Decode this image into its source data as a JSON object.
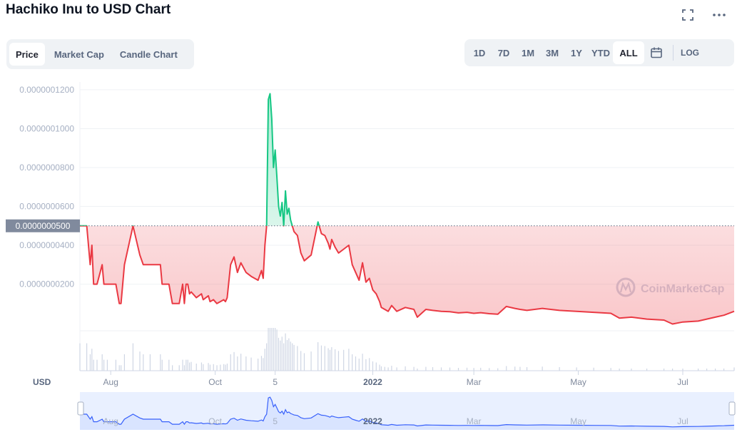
{
  "header": {
    "title": "Hachiko Inu to USD Chart"
  },
  "tabs": [
    {
      "label": "Price",
      "active": true
    },
    {
      "label": "Market Cap",
      "active": false
    },
    {
      "label": "Candle Chart",
      "active": false
    }
  ],
  "ranges": [
    {
      "label": "1D",
      "active": false
    },
    {
      "label": "7D",
      "active": false
    },
    {
      "label": "1M",
      "active": false
    },
    {
      "label": "3M",
      "active": false
    },
    {
      "label": "1Y",
      "active": false
    },
    {
      "label": "YTD",
      "active": false
    },
    {
      "label": "ALL",
      "active": true
    }
  ],
  "log_label": "LOG",
  "icons": {
    "fullscreen": "fullscreen-icon",
    "more": "more-icon",
    "calendar": "calendar-icon"
  },
  "colors": {
    "up": "#16c784",
    "down": "#ea3943",
    "navigator": "#3861fb"
  },
  "chart_data": {
    "type": "line",
    "currency_label": "USD",
    "watermark": "CoinMarketCap",
    "baseline_label": "0.0000000500",
    "baseline": 5e-08,
    "y_tick_labels": [
      "0.0000000200",
      "0.0000000400",
      "0.0000000600",
      "0.0000000800",
      "0.0000001000",
      "0.0000001200"
    ],
    "y_tick_values": [
      2e-08,
      4e-08,
      6e-08,
      8e-08,
      1e-07,
      1.2e-07
    ],
    "ylim": [
      -4e-09,
      1.24e-07
    ],
    "xlim": [
      "2021-07-14",
      "2022-07-31"
    ],
    "x_ticks": [
      {
        "date": "2021-08-01",
        "label": "Aug",
        "bold": false
      },
      {
        "date": "2021-10-01",
        "label": "Oct",
        "bold": false
      },
      {
        "date": "2021-11-05",
        "label": "5",
        "bold": false
      },
      {
        "date": "2022-01-01",
        "label": "2022",
        "bold": true
      },
      {
        "date": "2022-03-01",
        "label": "Mar",
        "bold": false
      },
      {
        "date": "2022-05-01",
        "label": "May",
        "bold": false
      },
      {
        "date": "2022-07-01",
        "label": "Jul",
        "bold": false
      }
    ],
    "series": [
      {
        "x": [
          "2021-07-14",
          "2021-07-18",
          "2021-07-20",
          "2021-07-21",
          "2021-07-22",
          "2021-07-24",
          "2021-07-27",
          "2021-07-28",
          "2021-07-30",
          "2021-08-04",
          "2021-08-06",
          "2021-08-07",
          "2021-08-09",
          "2021-08-14",
          "2021-08-18",
          "2021-08-20",
          "2021-08-24",
          "2021-08-30",
          "2021-08-31",
          "2021-09-04",
          "2021-09-06",
          "2021-09-10",
          "2021-09-12",
          "2021-09-13",
          "2021-09-14",
          "2021-09-15",
          "2021-09-16",
          "2021-09-17",
          "2021-09-20",
          "2021-09-23",
          "2021-09-24",
          "2021-09-27",
          "2021-09-28",
          "2021-09-30",
          "2021-10-02",
          "2021-10-04",
          "2021-10-06",
          "2021-10-07",
          "2021-10-08",
          "2021-10-10",
          "2021-10-12",
          "2021-10-14",
          "2021-10-16",
          "2021-10-19",
          "2021-10-22",
          "2021-10-26",
          "2021-10-28",
          "2021-10-29",
          "2021-10-30",
          "2021-10-31",
          "2021-11-01",
          "2021-11-02",
          "2021-11-03",
          "2021-11-04",
          "2021-11-05",
          "2021-11-06",
          "2021-11-07",
          "2021-11-08",
          "2021-11-09",
          "2021-11-10",
          "2021-11-11",
          "2021-11-12",
          "2021-11-13",
          "2021-11-14",
          "2021-11-15",
          "2021-11-16",
          "2021-11-18",
          "2021-11-20",
          "2021-11-22",
          "2021-11-26",
          "2021-11-30",
          "2021-12-02",
          "2021-12-04",
          "2021-12-06",
          "2021-12-07",
          "2021-12-08",
          "2021-12-10",
          "2021-12-12",
          "2021-12-15",
          "2021-12-18",
          "2021-12-20",
          "2021-12-22",
          "2021-12-24",
          "2021-12-26",
          "2021-12-28",
          "2021-12-30",
          "2022-01-01",
          "2022-01-03",
          "2022-01-05",
          "2022-01-06",
          "2022-01-08",
          "2022-01-10",
          "2022-01-12",
          "2022-01-15",
          "2022-01-20",
          "2022-01-25",
          "2022-01-27",
          "2022-02-01",
          "2022-02-05",
          "2022-02-10",
          "2022-02-15",
          "2022-02-20",
          "2022-02-25",
          "2022-03-01",
          "2022-03-05",
          "2022-03-10",
          "2022-03-15",
          "2022-03-20",
          "2022-03-25",
          "2022-03-28",
          "2022-04-01",
          "2022-04-10",
          "2022-04-20",
          "2022-04-30",
          "2022-05-10",
          "2022-05-20",
          "2022-05-25",
          "2022-06-01",
          "2022-06-10",
          "2022-06-20",
          "2022-06-25",
          "2022-07-01",
          "2022-07-10",
          "2022-07-15",
          "2022-07-20",
          "2022-07-25",
          "2022-07-31"
        ],
        "y": [
          5e-08,
          5e-08,
          3e-08,
          4e-08,
          2e-08,
          2e-08,
          3e-08,
          2e-08,
          2e-08,
          2e-08,
          1e-08,
          1e-08,
          3e-08,
          5e-08,
          3.5e-08,
          3e-08,
          3e-08,
          3e-08,
          2e-08,
          2e-08,
          1e-08,
          1e-08,
          2e-08,
          1e-08,
          2e-08,
          2e-08,
          1.5e-08,
          1.6e-08,
          1.3e-08,
          1.5e-08,
          1.2e-08,
          1.4e-08,
          1.1e-08,
          1.2e-08,
          1e-08,
          1.1e-08,
          1.2e-08,
          1.1e-08,
          1.3e-08,
          3e-08,
          3.4e-08,
          2.6e-08,
          3.1e-08,
          2.6e-08,
          2.4e-08,
          2.2e-08,
          2.7e-08,
          2.3e-08,
          4e-08,
          5e-08,
          1.15e-07,
          1.18e-07,
          1.05e-07,
          8e-08,
          8.9e-08,
          7.5e-08,
          6e-08,
          5.5e-08,
          6.2e-08,
          5e-08,
          6.8e-08,
          5.6e-08,
          5.9e-08,
          5.3e-08,
          5e-08,
          4.7e-08,
          4.5e-08,
          3.6e-08,
          3.2e-08,
          3.5e-08,
          5.2e-08,
          4.6e-08,
          4.5e-08,
          4.1e-08,
          3.8e-08,
          4.3e-08,
          3.9e-08,
          3.6e-08,
          3.8e-08,
          4e-08,
          3e-08,
          2.6e-08,
          2.2e-08,
          3.1e-08,
          2.1e-08,
          2.3e-08,
          1.7e-08,
          1.5e-08,
          1.1e-08,
          8e-09,
          7e-09,
          6e-09,
          9e-09,
          6e-09,
          8e-09,
          7e-09,
          3e-09,
          7e-09,
          6.5e-09,
          6e-09,
          5.8e-09,
          5.2e-09,
          5.5e-09,
          5e-09,
          5.3e-09,
          4.8e-09,
          4.5e-09,
          8.5e-09,
          7.5e-09,
          7e-09,
          6.5e-09,
          7.5e-09,
          6.5e-09,
          6e-09,
          5.5e-09,
          5e-09,
          2.5e-09,
          3e-09,
          2e-09,
          1.5e-09,
          -5e-10,
          5e-10,
          1e-09,
          2e-09,
          3e-09,
          4e-09,
          6e-09
        ]
      }
    ]
  }
}
